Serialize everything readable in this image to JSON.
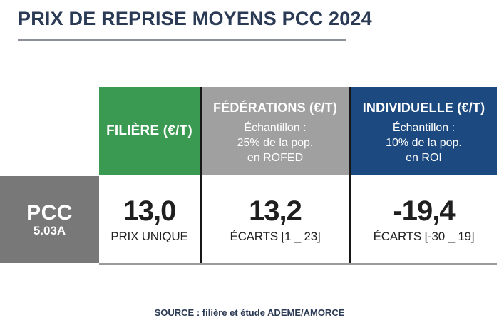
{
  "title": "PRIX DE REPRISE MOYENS PCC 2024",
  "source": "SOURCE : filière et étude ADEME/AMORCE",
  "colors": {
    "title_navy": "#2b3a55",
    "filiere_green": "#3a9a52",
    "federations_gray": "#a0a0a0",
    "individuelle_blue": "#1c4a80",
    "row_header_gray": "#787878",
    "separator_black": "#161616",
    "rule_gray": "#8b909a"
  },
  "table": {
    "columns": [
      {
        "label": "FILIÈRE (€/T)",
        "sub_lines": []
      },
      {
        "label": "FÉDÉRATIONS (€/T)",
        "sub_lines": [
          "Échantillon :",
          "25% de la pop.",
          "en ROFED"
        ]
      },
      {
        "label": "INDIVIDUELLE (€/T)",
        "sub_lines": [
          "Échantillon :",
          "10% de la pop.",
          "en ROI"
        ]
      }
    ],
    "row": {
      "label": "PCC",
      "sublabel": "5.03A",
      "values": [
        {
          "value": "13,0",
          "note": "PRIX UNIQUE"
        },
        {
          "value": "13,2",
          "note": "ÉCARTS [1 _ 23]"
        },
        {
          "value": "-19,4",
          "note": "ÉCARTS [-30 _ 19]"
        }
      ]
    }
  },
  "chart_data": {
    "type": "table",
    "title": "PRIX DE REPRISE MOYENS PCC 2024",
    "columns": [
      "FILIÈRE (€/T)",
      "FÉDÉRATIONS (€/T)",
      "INDIVIDUELLE (€/T)"
    ],
    "column_subtitles": [
      "",
      "Échantillon : 25% de la pop. en ROFED",
      "Échantillon : 10% de la pop. en ROI"
    ],
    "rows": [
      {
        "label": "PCC 5.03A",
        "values": [
          13.0,
          13.2,
          -19.4
        ],
        "notes": [
          "PRIX UNIQUE",
          "ÉCARTS [1 _ 23]",
          "ÉCARTS [-30 _ 19]"
        ]
      }
    ],
    "source": "SOURCE : filière et étude ADEME/AMORCE"
  }
}
